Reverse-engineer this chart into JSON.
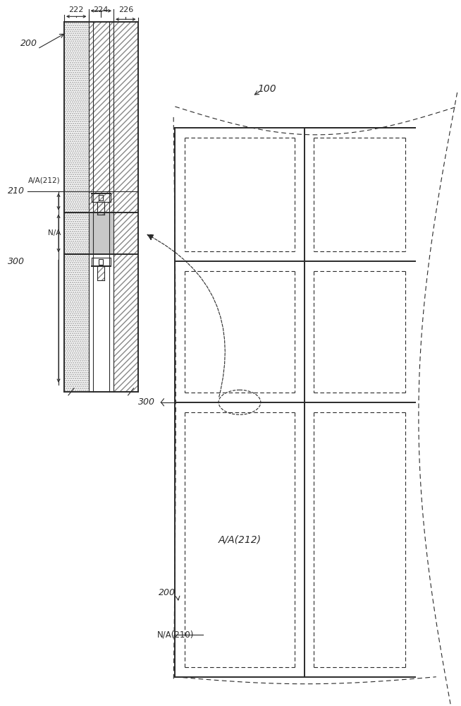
{
  "bg_color": "#ffffff",
  "line_color": "#2a2a2a",
  "fig_width": 6.54,
  "fig_height": 10.0,
  "labels": {
    "l200": "200",
    "l210": "210",
    "l300": "300",
    "l222": "222",
    "l224": "224",
    "l226": "226",
    "lAA": "A/A(212)",
    "lNA": "N/A",
    "l100": "100",
    "l200r": "200",
    "lNA210": "N/A(210)",
    "lAA212": "A/A(212)",
    "l300r": "300"
  }
}
